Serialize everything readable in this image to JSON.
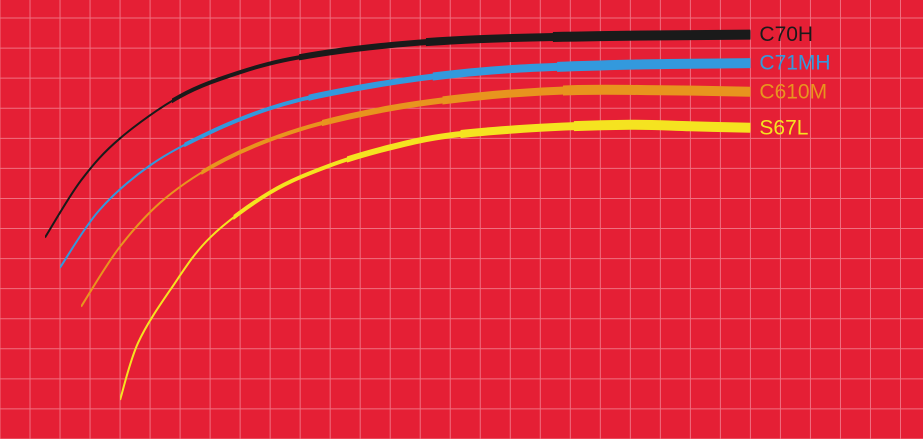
{
  "colors": {
    "background": "#E51F35",
    "grid": "#F07080"
  },
  "chart_data": {
    "type": "line",
    "grid": true,
    "legend": "inline-right",
    "title": "",
    "xlabel": "",
    "ylabel": "",
    "xlim": [
      0,
      30.75
    ],
    "ylim": [
      0,
      14.6
    ],
    "series": [
      {
        "name": "C70H",
        "color": "#1A1A1A",
        "points": [
          [
            1.5,
            6.7
          ],
          [
            2.7,
            8.6
          ],
          [
            4.0,
            10.0
          ],
          [
            6.0,
            11.4
          ],
          [
            8.0,
            12.2
          ],
          [
            10.0,
            12.7
          ],
          [
            13.0,
            13.1
          ],
          [
            16.0,
            13.3
          ],
          [
            20.0,
            13.4
          ],
          [
            25.0,
            13.45
          ]
        ]
      },
      {
        "name": "C71MH",
        "color": "#3399DD",
        "points": [
          [
            2.0,
            5.7
          ],
          [
            3.3,
            7.6
          ],
          [
            5.0,
            9.1
          ],
          [
            7.0,
            10.2
          ],
          [
            9.0,
            11.0
          ],
          [
            11.0,
            11.5
          ],
          [
            14.0,
            12.0
          ],
          [
            17.0,
            12.3
          ],
          [
            21.0,
            12.45
          ],
          [
            25.0,
            12.5
          ]
        ]
      },
      {
        "name": "C610M",
        "color": "#E8941E",
        "points": [
          [
            2.7,
            4.4
          ],
          [
            4.0,
            6.4
          ],
          [
            5.5,
            8.0
          ],
          [
            7.5,
            9.3
          ],
          [
            10.0,
            10.3
          ],
          [
            13.0,
            11.0
          ],
          [
            16.0,
            11.4
          ],
          [
            19.0,
            11.6
          ],
          [
            22.0,
            11.6
          ],
          [
            25.0,
            11.55
          ]
        ]
      },
      {
        "name": "S67L",
        "color": "#F5E320",
        "points": [
          [
            4.0,
            1.3
          ],
          [
            4.6,
            3.2
          ],
          [
            5.7,
            5.0
          ],
          [
            7.0,
            6.7
          ],
          [
            9.0,
            8.2
          ],
          [
            11.0,
            9.1
          ],
          [
            13.0,
            9.7
          ],
          [
            15.0,
            10.1
          ],
          [
            18.0,
            10.35
          ],
          [
            21.0,
            10.45
          ],
          [
            23.0,
            10.4
          ],
          [
            25.0,
            10.35
          ]
        ]
      }
    ]
  }
}
